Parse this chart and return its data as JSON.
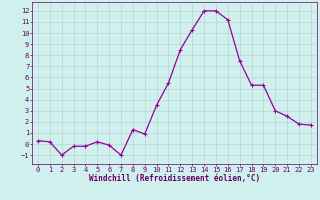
{
  "x": [
    0,
    1,
    2,
    3,
    4,
    5,
    6,
    7,
    8,
    9,
    10,
    11,
    12,
    13,
    14,
    15,
    16,
    17,
    18,
    19,
    20,
    21,
    22,
    23
  ],
  "y": [
    0.3,
    0.2,
    -1.0,
    -0.2,
    -0.2,
    0.2,
    -0.1,
    -1.0,
    1.3,
    0.9,
    3.5,
    5.5,
    8.5,
    10.3,
    12.0,
    12.0,
    11.2,
    7.5,
    5.3,
    5.3,
    3.0,
    2.5,
    1.8,
    1.7
  ],
  "line_color": "#990099",
  "marker": "+",
  "marker_size": 3,
  "linewidth": 0.9,
  "bg_color": "#d0f0ee",
  "grid_color": "#b0d0cc",
  "xlabel": "Windchill (Refroidissement éolien,°C)",
  "xlabel_color": "#660066",
  "xlabel_fontsize": 5.5,
  "tick_color": "#660066",
  "tick_fontsize": 5,
  "ylim": [
    -1.8,
    12.8
  ],
  "xlim": [
    -0.5,
    23.5
  ],
  "yticks": [
    -1,
    0,
    1,
    2,
    3,
    4,
    5,
    6,
    7,
    8,
    9,
    10,
    11,
    12
  ],
  "xticks": [
    0,
    1,
    2,
    3,
    4,
    5,
    6,
    7,
    8,
    9,
    10,
    11,
    12,
    13,
    14,
    15,
    16,
    17,
    18,
    19,
    20,
    21,
    22,
    23
  ]
}
